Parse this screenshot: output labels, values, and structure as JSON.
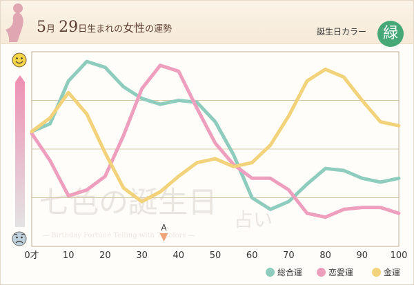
{
  "header": {
    "month": "5",
    "month_unit": "月",
    "day": "29",
    "suffix_1": "日生まれの",
    "suffix_2": "女性",
    "suffix_3": "の運勢",
    "lucky_color_label": "誕生日カラー",
    "lucky_color_badge": "緑",
    "lucky_color": "#47a877"
  },
  "watermark": {
    "main": "七色の誕生日",
    "sub": "占い",
    "tagline": "— Birthday Fortune Telling with 7 Colors —"
  },
  "icons": {
    "top": "smile-face-icon",
    "bottom": "worried-face-icon"
  },
  "marker": {
    "label": "A",
    "age": 36
  },
  "chart_data": {
    "type": "line",
    "x_tick_labels": [
      "0才",
      "10",
      "20",
      "30",
      "40",
      "50",
      "60",
      "70",
      "80",
      "90",
      "100"
    ],
    "xlim": [
      0,
      100
    ],
    "ylim": [
      0,
      100
    ],
    "grid": true,
    "legend_position": "bottom-right",
    "series": [
      {
        "name": "総合運",
        "color": "#8ecdbd",
        "x": [
          0,
          5,
          10,
          15,
          20,
          25,
          30,
          35,
          40,
          45,
          50,
          55,
          60,
          65,
          70,
          75,
          80,
          85,
          90,
          95,
          100
        ],
        "values": [
          59,
          63,
          85,
          95,
          92,
          82,
          76,
          73,
          75,
          74,
          64,
          47,
          25,
          19,
          23,
          32,
          40,
          39,
          35,
          33,
          35
        ]
      },
      {
        "name": "恋愛運",
        "color": "#ee9fbd",
        "x": [
          0,
          5,
          10,
          15,
          20,
          25,
          30,
          35,
          40,
          45,
          50,
          55,
          60,
          65,
          70,
          75,
          80,
          85,
          90,
          95,
          100
        ],
        "values": [
          58,
          44,
          26,
          29,
          36,
          57,
          81,
          93,
          90,
          71,
          53,
          42,
          35,
          35,
          29,
          17,
          15,
          19,
          20,
          20,
          17
        ]
      },
      {
        "name": "金運",
        "color": "#f2d37c",
        "x": [
          0,
          5,
          10,
          15,
          20,
          25,
          30,
          35,
          40,
          45,
          50,
          55,
          60,
          65,
          70,
          75,
          80,
          85,
          90,
          95,
          100
        ],
        "values": [
          59,
          66,
          79,
          68,
          48,
          30,
          23,
          28,
          36,
          43,
          45,
          41,
          43,
          52,
          67,
          85,
          91,
          87,
          75,
          64,
          62
        ]
      }
    ]
  }
}
